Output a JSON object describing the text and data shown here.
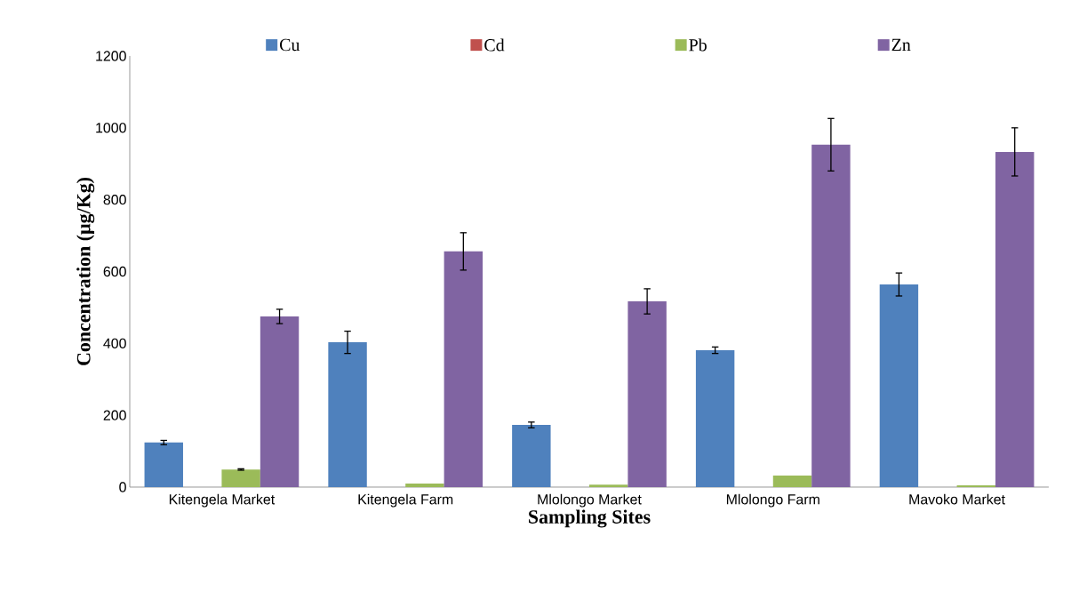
{
  "chart_data": {
    "type": "bar",
    "xlabel": "Sampling Sites",
    "ylabel": "Concentration (µg/Kg)",
    "categories": [
      "Kitengela Market",
      "Kitengela Farm",
      "Mlolongo Market",
      "Mlolongo Farm",
      "Mavoko Market"
    ],
    "series": [
      {
        "name": "Cu",
        "color": "#4f81bd",
        "values": [
          124,
          403,
          173,
          381,
          564
        ],
        "errors": [
          6,
          31,
          8,
          9,
          32
        ]
      },
      {
        "name": "Cd",
        "color": "#c0504d",
        "values": [
          0,
          0,
          0,
          0,
          0
        ]
      },
      {
        "name": "Pb",
        "color": "#9bbb59",
        "values": [
          49,
          10,
          7,
          32,
          5
        ],
        "errors": [
          2,
          null,
          null,
          null,
          null
        ]
      },
      {
        "name": "Zn",
        "color": "#8064a2",
        "values": [
          475,
          656,
          517,
          953,
          933
        ],
        "errors": [
          20,
          52,
          35,
          73,
          67
        ]
      }
    ],
    "ylim": [
      0,
      1200
    ],
    "yticks": [
      0,
      200,
      400,
      600,
      800,
      1000,
      1200
    ],
    "legend": "top"
  }
}
